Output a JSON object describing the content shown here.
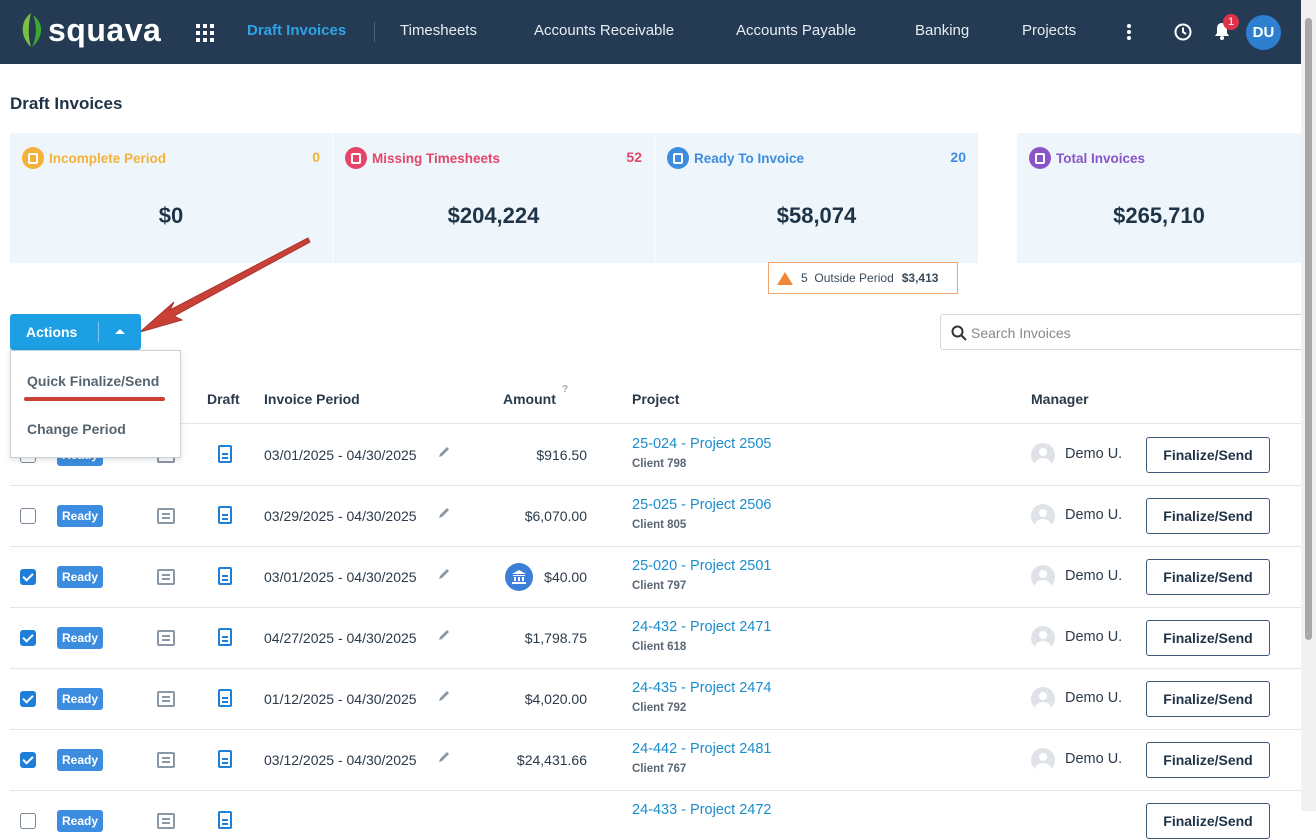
{
  "app": {
    "logo_text": "squava",
    "user_initials": "DU",
    "notification_count": "1"
  },
  "nav": {
    "items": [
      {
        "label": "Draft Invoices",
        "active": true
      },
      {
        "label": "Timesheets"
      },
      {
        "label": "Accounts Receivable"
      },
      {
        "label": "Accounts Payable"
      },
      {
        "label": "Banking"
      },
      {
        "label": "Projects"
      }
    ]
  },
  "page": {
    "title": "Draft Invoices"
  },
  "cards": [
    {
      "label": "Incomplete Period",
      "count": "0",
      "amount": "$0",
      "color": "#f3b13a"
    },
    {
      "label": "Missing Timesheets",
      "count": "52",
      "amount": "$204,224",
      "color": "#e3466a"
    },
    {
      "label": "Ready To Invoice",
      "count": "20",
      "amount": "$58,074",
      "color": "#3c8de0"
    },
    {
      "label": "Total Invoices",
      "count": "",
      "amount": "$265,710",
      "color": "#8a54c8"
    }
  ],
  "outside_period": {
    "count": "5",
    "label": "Outside Period",
    "amount": "$3,413"
  },
  "actions": {
    "label": "Actions",
    "menu": [
      "Quick Finalize/Send",
      "Change Period"
    ]
  },
  "search": {
    "placeholder": "Search Invoices",
    "value": ""
  },
  "table": {
    "headers": {
      "draft": "Draft",
      "period": "Invoice Period",
      "amount": "Amount",
      "amount_help": "?",
      "project": "Project",
      "manager": "Manager"
    },
    "rows": [
      {
        "checked": false,
        "status": "Ready",
        "period": "03/01/2025 - 04/30/2025",
        "amount": "$916.50",
        "project": "25-024 - Project 2505",
        "client": "Client 798",
        "manager": "Demo U.",
        "action": "Finalize/Send",
        "bank": false
      },
      {
        "checked": false,
        "status": "Ready",
        "period": "03/29/2025 - 04/30/2025",
        "amount": "$6,070.00",
        "project": "25-025 - Project 2506",
        "client": "Client 805",
        "manager": "Demo U.",
        "action": "Finalize/Send",
        "bank": false
      },
      {
        "checked": true,
        "status": "Ready",
        "period": "03/01/2025 - 04/30/2025",
        "amount": "$40.00",
        "project": "25-020 - Project 2501",
        "client": "Client 797",
        "manager": "Demo U.",
        "action": "Finalize/Send",
        "bank": true
      },
      {
        "checked": true,
        "status": "Ready",
        "period": "04/27/2025 - 04/30/2025",
        "amount": "$1,798.75",
        "project": "24-432 - Project 2471",
        "client": "Client 618",
        "manager": "Demo U.",
        "action": "Finalize/Send",
        "bank": false
      },
      {
        "checked": true,
        "status": "Ready",
        "period": "01/12/2025 - 04/30/2025",
        "amount": "$4,020.00",
        "project": "24-435 - Project 2474",
        "client": "Client 792",
        "manager": "Demo U.",
        "action": "Finalize/Send",
        "bank": false
      },
      {
        "checked": true,
        "status": "Ready",
        "period": "03/12/2025 - 04/30/2025",
        "amount": "$24,431.66",
        "project": "24-442 - Project 2481",
        "client": "Client 767",
        "manager": "Demo U.",
        "action": "Finalize/Send",
        "bank": false
      },
      {
        "checked": false,
        "status": "Ready",
        "period": "",
        "amount": "",
        "project": "24-433 - Project 2472",
        "client": "",
        "manager": "",
        "action": "Finalize/Send",
        "bank": false
      }
    ]
  }
}
